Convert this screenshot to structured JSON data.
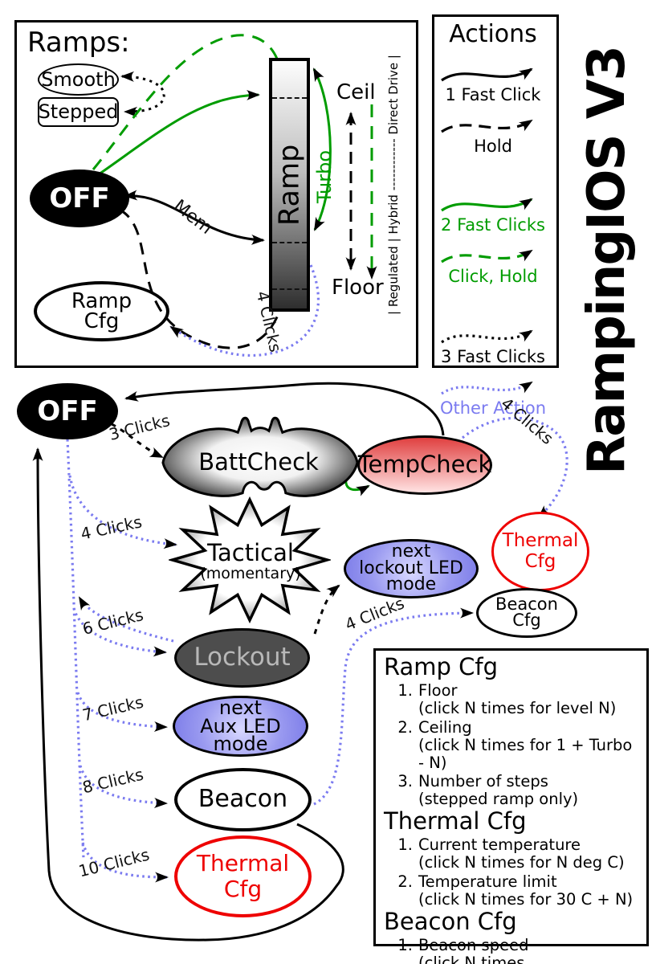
{
  "title": "RampingIOS V3",
  "colors": {
    "black": "#000000",
    "green": "#009c00",
    "blue_dotted": "#7b7bf0",
    "red": "#ee0000",
    "lockout_fill": "#4d4d4d",
    "lockout_text": "#b8b8b8",
    "blue_node_edge": "#7a7ae8",
    "blue_node_center": "#d8d8ff",
    "tempcheck_top": "#e04040",
    "tempcheck_bottom": "#ffe3e3"
  },
  "ramps_box": {
    "title": "Ramps:",
    "smooth": "Smooth",
    "stepped": "Stepped",
    "ramp_bar": "Ramp",
    "turbo": "Turbo",
    "ceil": "Ceil",
    "floor": "Floor",
    "drive_scale": "| Regulated | Hybrid ------------ Direct Drive |",
    "mem": "Mem",
    "ramp_cfg": "Ramp\nCfg",
    "four_clicks": "4 Clicks"
  },
  "legend": {
    "title": "Actions",
    "rows": [
      {
        "label": "1 Fast Click",
        "color": "#000000",
        "dash": "none",
        "text_color": "#000000"
      },
      {
        "label": "Hold",
        "color": "#000000",
        "dash": "15 9",
        "text_color": "#000000"
      },
      {
        "label": "2 Fast Clicks",
        "color": "#009c00",
        "dash": "none",
        "text_color": "#009c00"
      },
      {
        "label": "Click, Hold",
        "color": "#009c00",
        "dash": "15 9",
        "text_color": "#009c00"
      },
      {
        "label": "3 Fast Clicks",
        "color": "#000000",
        "dash": "3 5",
        "text_color": "#000000"
      },
      {
        "label": "Other Action",
        "color": "#7b7bf0",
        "dash": "2.5 4",
        "text_color": "#7b7bf0"
      }
    ]
  },
  "nodes": {
    "off": "OFF",
    "battcheck": "BattCheck",
    "tempcheck": "TempCheck",
    "thermal_cfg": "Thermal\nCfg",
    "tactical": "Tactical",
    "tactical_sub": "(momentary)",
    "next_lockout": "next\nlockout LED\nmode",
    "beacon_cfg": "Beacon\nCfg",
    "lockout": "Lockout",
    "next_aux": "next\nAux LED\nmode",
    "beacon": "Beacon"
  },
  "click_labels": {
    "batt": "3 Clicks",
    "tactical": "4 Clicks",
    "lockout": "6 Clicks",
    "aux": "7 Clicks",
    "beacon": "8 Clicks",
    "thermal": "10 Clicks",
    "temp_to_thermal": "4 Clicks",
    "beacon_to_cfg": "4 Clicks"
  },
  "cfg_box": {
    "sections": [
      {
        "title": "Ramp Cfg",
        "items": [
          {
            "num": "1.",
            "text": "Floor\n(click N times for level N)"
          },
          {
            "num": "2.",
            "text": "Ceiling\n(click N times for 1 + Turbo - N)"
          },
          {
            "num": "3.",
            "text": "Number of steps\n(stepped ramp only)"
          }
        ]
      },
      {
        "title": "Thermal Cfg",
        "items": [
          {
            "num": "1.",
            "text": "Current temperature\n(click N times for N deg C)"
          },
          {
            "num": "2.",
            "text": "Temperature limit\n(click N times for 30 C + N)"
          }
        ]
      },
      {
        "title": "Beacon Cfg",
        "items": [
          {
            "num": "1.",
            "text": "Beacon speed\n(click N times\nfor N seconds per flash)"
          }
        ]
      }
    ]
  }
}
